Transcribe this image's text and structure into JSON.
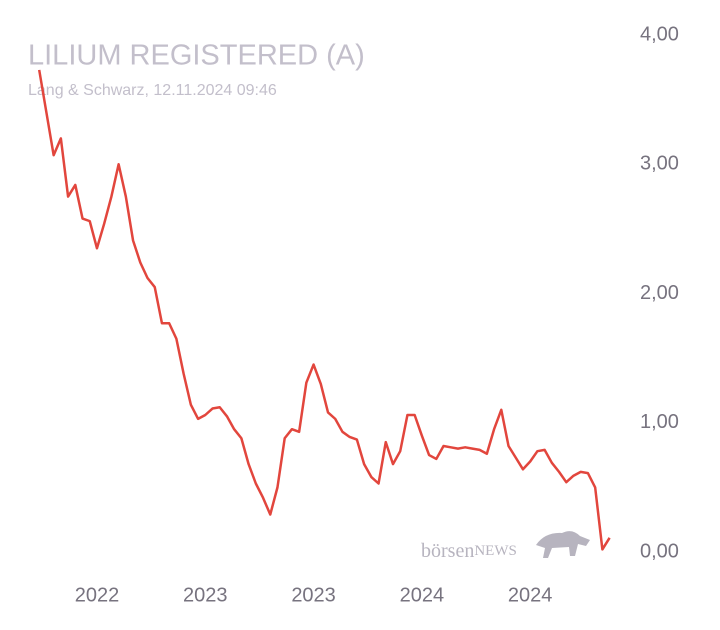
{
  "chart_data": {
    "type": "line",
    "title": "LILIUM REGISTERED (A)",
    "subtitle": "Lang & Schwarz, 12.11.2024 09:46",
    "watermark": [
      "börsen",
      "NEWS"
    ],
    "color": "#e2463d",
    "categories": [
      null,
      null,
      null,
      null,
      null,
      null,
      null,
      null,
      "2022",
      null,
      null,
      null,
      null,
      null,
      null,
      null,
      null,
      null,
      null,
      null,
      null,
      null,
      null,
      "2023",
      null,
      null,
      null,
      null,
      null,
      null,
      null,
      null,
      null,
      null,
      null,
      null,
      null,
      null,
      "2023",
      null,
      null,
      null,
      null,
      null,
      null,
      null,
      null,
      null,
      null,
      null,
      null,
      null,
      null,
      "2024",
      null,
      null,
      null,
      null,
      null,
      null,
      null,
      null,
      null,
      null,
      null,
      null,
      null,
      null,
      "2024",
      null,
      null,
      null,
      null,
      null,
      null,
      null,
      null,
      null,
      null,
      null
    ],
    "values": [
      3.73,
      3.4,
      3.07,
      3.2,
      2.75,
      2.84,
      2.58,
      2.56,
      2.35,
      2.54,
      2.75,
      3.0,
      2.75,
      2.41,
      2.24,
      2.12,
      2.05,
      1.77,
      1.77,
      1.65,
      1.38,
      1.14,
      1.03,
      1.06,
      1.11,
      1.12,
      1.05,
      0.95,
      0.88,
      0.68,
      0.53,
      0.42,
      0.29,
      0.5,
      0.88,
      0.95,
      0.93,
      1.31,
      1.45,
      1.3,
      1.08,
      1.03,
      0.93,
      0.89,
      0.87,
      0.68,
      0.58,
      0.53,
      0.85,
      0.68,
      0.78,
      1.06,
      1.06,
      0.9,
      0.75,
      0.72,
      0.82,
      0.81,
      0.8,
      0.81,
      0.8,
      0.79,
      0.76,
      0.95,
      1.1,
      0.82,
      0.73,
      0.64,
      0.7,
      0.78,
      0.79,
      0.69,
      0.62,
      0.54,
      0.59,
      0.62,
      0.61,
      0.5,
      0.02,
      0.11
    ],
    "ylim": [
      0,
      4
    ],
    "yticks": [
      {
        "value": 0,
        "label": "0,00"
      },
      {
        "value": 1,
        "label": "1,00"
      },
      {
        "value": 2,
        "label": "2,00"
      },
      {
        "value": 3,
        "label": "3,00"
      },
      {
        "value": 4,
        "label": "4,00"
      }
    ],
    "y_axis_side": "right",
    "grid": false
  }
}
